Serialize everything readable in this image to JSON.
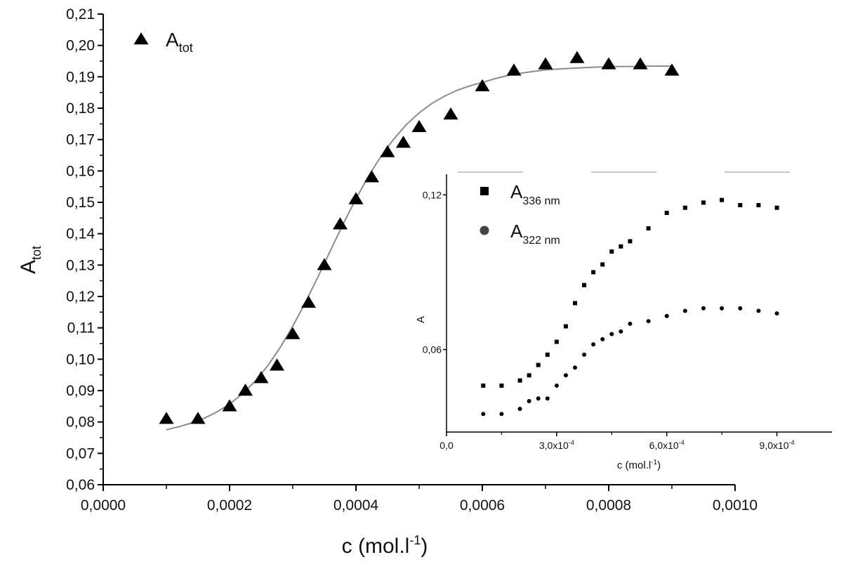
{
  "chart_data": [
    {
      "type": "scatter",
      "xlabel": "c (mol.l",
      "xlabel_sup": "-1",
      "xlabel_end": ")",
      "ylabel": "A",
      "ylabel_sub": "tot",
      "xlim": [
        -0.0,
        0.001
      ],
      "ylim": [
        0.06,
        0.21
      ],
      "xticks": [
        0.0,
        0.0002,
        0.0004,
        0.0006,
        0.0008,
        0.001
      ],
      "xtick_labels": [
        "0,0000",
        "0,0002",
        "0,0004",
        "0,0006",
        "0,0008",
        "0,0010"
      ],
      "yticks": [
        0.06,
        0.07,
        0.08,
        0.09,
        0.1,
        0.11,
        0.12,
        0.13,
        0.14,
        0.15,
        0.16,
        0.17,
        0.18,
        0.19,
        0.2,
        0.21
      ],
      "ytick_labels": [
        "0,06",
        "0,07",
        "0,08",
        "0,09",
        "0,10",
        "0,11",
        "0,12",
        "0,13",
        "0,14",
        "0,15",
        "0,16",
        "0,17",
        "0,18",
        "0,19",
        "0,20",
        "0,21"
      ],
      "legend_position": "top-left",
      "series": [
        {
          "name": "A",
          "name_sub": "tot",
          "marker": "triangle",
          "color": "#000000",
          "x": [
            0.0001,
            0.00015,
            0.0002,
            0.000225,
            0.00025,
            0.000275,
            0.0003,
            0.000325,
            0.00035,
            0.000375,
            0.0004,
            0.000425,
            0.00045,
            0.000475,
            0.0005,
            0.00055,
            0.0006,
            0.00065,
            0.0007,
            0.00075,
            0.0008,
            0.00085,
            0.0009
          ],
          "y": [
            0.081,
            0.081,
            0.085,
            0.09,
            0.094,
            0.098,
            0.108,
            0.118,
            0.13,
            0.143,
            0.151,
            0.158,
            0.166,
            0.169,
            0.174,
            0.178,
            0.187,
            0.192,
            0.194,
            0.196,
            0.194,
            0.194,
            0.192
          ]
        }
      ],
      "fit": {
        "color": "#8c8c8c",
        "x": [
          0.0001,
          0.00012,
          0.00014,
          0.00016,
          0.00018,
          0.0002,
          0.00022,
          0.00024,
          0.00026,
          0.00028,
          0.0003,
          0.00032,
          0.00034,
          0.00036,
          0.00038,
          0.0004,
          0.00042,
          0.00044,
          0.00046,
          0.00048,
          0.0005,
          0.00052,
          0.00054,
          0.00056,
          0.00058,
          0.0006,
          0.00062,
          0.00064,
          0.00066,
          0.00068,
          0.0007,
          0.00072,
          0.00074,
          0.00076,
          0.00078,
          0.0008,
          0.00082,
          0.00084,
          0.00086,
          0.00088,
          0.0009
        ],
        "y": [
          0.0775,
          0.0785,
          0.0797,
          0.0812,
          0.0832,
          0.0857,
          0.0889,
          0.0929,
          0.0978,
          0.1037,
          0.1105,
          0.1181,
          0.1263,
          0.1348,
          0.1432,
          0.1511,
          0.1584,
          0.1648,
          0.1702,
          0.1748,
          0.1785,
          0.1815,
          0.1838,
          0.1857,
          0.1871,
          0.1882,
          0.1894,
          0.1904,
          0.1911,
          0.1917,
          0.1922,
          0.1925,
          0.1927,
          0.1929,
          0.1931,
          0.1932,
          0.1933,
          0.1933,
          0.1934,
          0.1934,
          0.1934
        ]
      }
    },
    {
      "type": "scatter",
      "xlabel": "c (mol.l",
      "xlabel_sup": "-1",
      "xlabel_end": ")",
      "ylabel": "A",
      "xlim": [
        0.0,
        0.00105
      ],
      "ylim": [
        0.028,
        0.128
      ],
      "xticks": [
        0.0,
        0.0003,
        0.0006,
        0.0009
      ],
      "xtick_labels": [
        {
          "base": "0,0",
          "exp": ""
        },
        {
          "base": "3,0x10",
          "exp": "-4"
        },
        {
          "base": "6,0x10",
          "exp": "-4"
        },
        {
          "base": "9,0x10",
          "exp": "-4"
        }
      ],
      "yticks": [
        0.06,
        0.12
      ],
      "ytick_labels": [
        "0,06",
        "0,12"
      ],
      "legend_position": "top-left",
      "series": [
        {
          "name": "A",
          "name_sub": "336 nm",
          "marker": "square",
          "color": "#000000",
          "x": [
            0.0001,
            0.00015,
            0.0002,
            0.000225,
            0.00025,
            0.000275,
            0.0003,
            0.000325,
            0.00035,
            0.000375,
            0.0004,
            0.000425,
            0.00045,
            0.000475,
            0.0005,
            0.00055,
            0.0006,
            0.00065,
            0.0007,
            0.00075,
            0.0008,
            0.00085,
            0.0009
          ],
          "y": [
            0.046,
            0.046,
            0.048,
            0.05,
            0.054,
            0.058,
            0.063,
            0.069,
            0.078,
            0.085,
            0.09,
            0.093,
            0.098,
            0.1,
            0.102,
            0.107,
            0.113,
            0.115,
            0.117,
            0.118,
            0.116,
            0.116,
            0.115
          ]
        },
        {
          "name": "A",
          "name_sub": "322 nm",
          "marker": "circle",
          "color": "#000000",
          "x": [
            0.0001,
            0.00015,
            0.0002,
            0.000225,
            0.00025,
            0.000275,
            0.0003,
            0.000325,
            0.00035,
            0.000375,
            0.0004,
            0.000425,
            0.00045,
            0.000475,
            0.0005,
            0.00055,
            0.0006,
            0.00065,
            0.0007,
            0.00075,
            0.0008,
            0.00085,
            0.0009
          ],
          "y": [
            0.035,
            0.035,
            0.037,
            0.04,
            0.041,
            0.041,
            0.046,
            0.05,
            0.053,
            0.058,
            0.062,
            0.064,
            0.066,
            0.067,
            0.07,
            0.071,
            0.073,
            0.075,
            0.076,
            0.076,
            0.076,
            0.075,
            0.074
          ]
        }
      ]
    }
  ]
}
